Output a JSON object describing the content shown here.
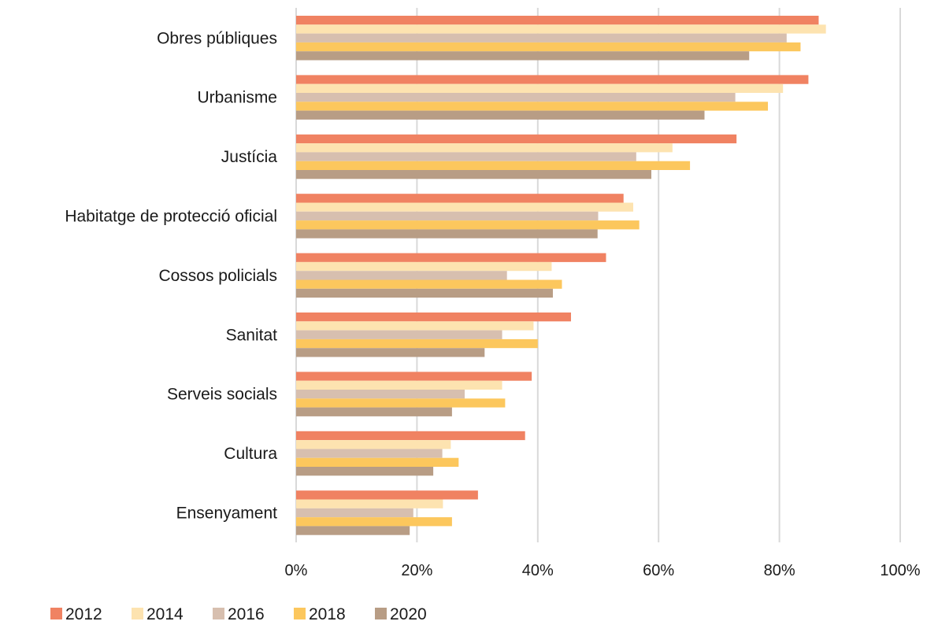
{
  "chart_data": {
    "type": "bar",
    "orientation": "horizontal",
    "categories": [
      "Obres públiques",
      "Urbanisme",
      "Justícia",
      "Habitatge de protecció oficial",
      "Cossos policials",
      "Sanitat",
      "Serveis socials",
      "Cultura",
      "Ensenyament"
    ],
    "series": [
      {
        "name": "2012",
        "color": "#f08262",
        "values": [
          86.5,
          84.8,
          72.9,
          54.2,
          51.3,
          45.5,
          39.0,
          37.9,
          30.1
        ]
      },
      {
        "name": "2014",
        "color": "#fde3b0",
        "values": [
          87.7,
          80.6,
          62.3,
          55.8,
          42.3,
          39.3,
          34.1,
          25.6,
          24.3
        ]
      },
      {
        "name": "2016",
        "color": "#d7bfaf",
        "values": [
          81.2,
          72.7,
          56.3,
          50.0,
          34.9,
          34.1,
          27.9,
          24.2,
          19.4
        ]
      },
      {
        "name": "2018",
        "color": "#fcc75d",
        "values": [
          83.5,
          78.1,
          65.2,
          56.8,
          44.0,
          40.0,
          34.6,
          26.9,
          25.8
        ]
      },
      {
        "name": "2020",
        "color": "#b89d85",
        "values": [
          75.0,
          67.6,
          58.8,
          49.9,
          42.5,
          31.2,
          25.8,
          22.7,
          18.8
        ]
      }
    ],
    "xticks": [
      "0%",
      "20%",
      "40%",
      "60%",
      "80%",
      "100%"
    ],
    "xlim": [
      0,
      100
    ],
    "grid": true,
    "legend": "bottom-left"
  }
}
